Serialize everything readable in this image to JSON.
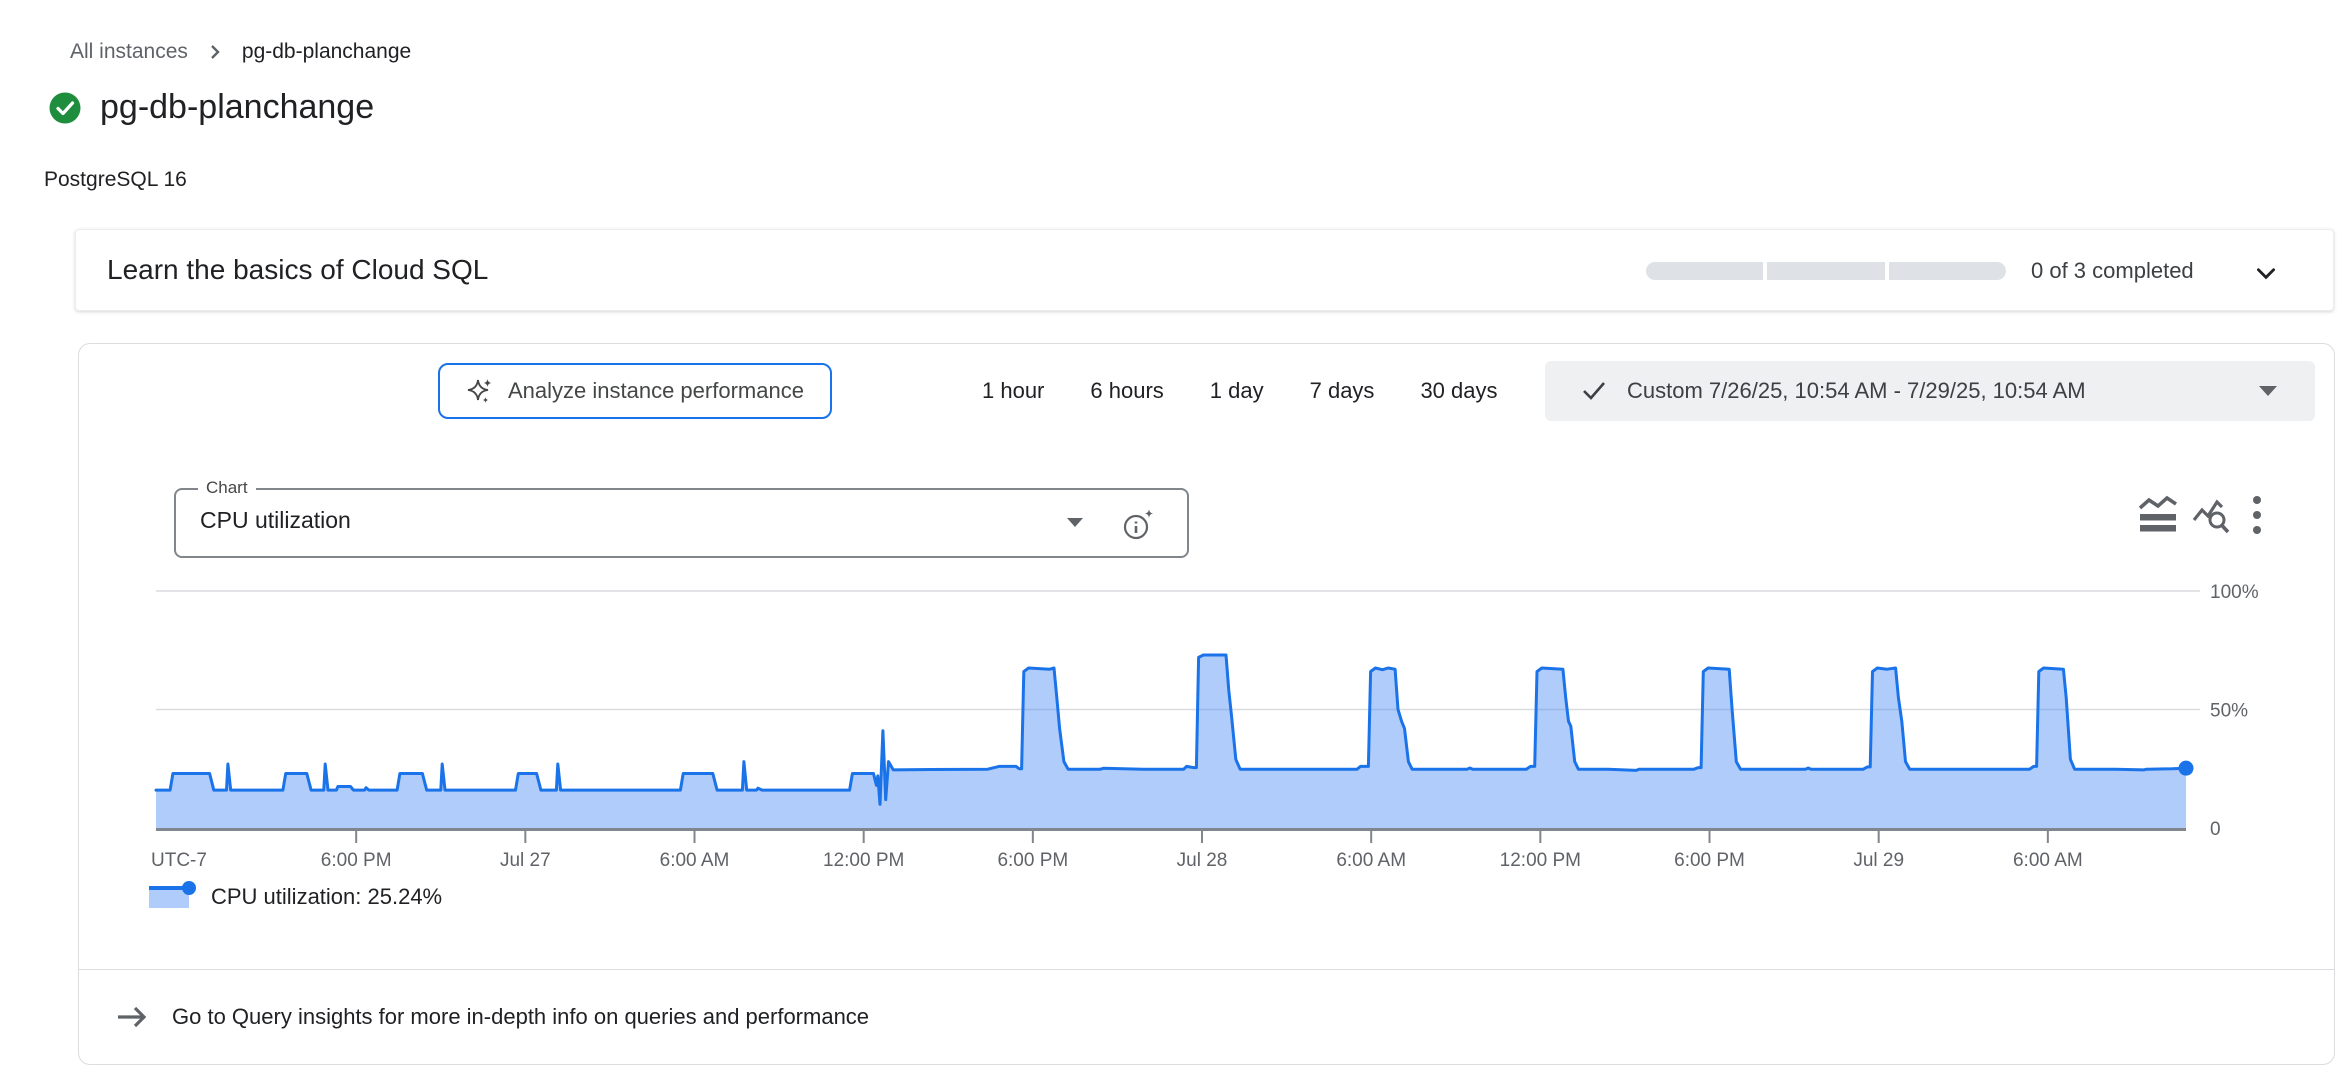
{
  "breadcrumb": {
    "parent": "All instances",
    "current": "pg-db-planchange"
  },
  "header": {
    "title": "pg-db-planchange",
    "subtitle": "PostgreSQL 16",
    "status": "healthy"
  },
  "learn_card": {
    "title": "Learn the basics of Cloud SQL",
    "progress_completed": 0,
    "progress_total": 3,
    "progress_label": "0 of 3 completed"
  },
  "toolbar": {
    "analyze_button": "Analyze instance performance",
    "ranges": [
      "1 hour",
      "6 hours",
      "1 day",
      "7 days",
      "30 days"
    ],
    "custom_range": "Custom 7/26/25, 10:54 AM - 7/29/25, 10:54 AM"
  },
  "chart_controls": {
    "field_label": "Chart",
    "selected": "CPU utilization"
  },
  "legend": {
    "label": "CPU utilization: 25.24%"
  },
  "footer": {
    "text": "Go to Query insights for more in-depth info on queries and performance"
  },
  "colors": {
    "accent": "#1a73e8",
    "series_line": "#1a73e8",
    "series_fill": "rgba(66,133,244,0.42)",
    "status_green": "#1e8e3e",
    "axis": "#80868b",
    "grid": "#dadce0"
  },
  "chart_data": {
    "type": "area",
    "title": "CPU utilization",
    "ylabel": "CPU utilization (%)",
    "ylim": [
      0,
      100
    ],
    "y_ticks": [
      {
        "v": 100,
        "label": "100%"
      },
      {
        "v": 50,
        "label": "50%"
      },
      {
        "v": 0,
        "label": "0"
      }
    ],
    "tz_label": "UTC-7",
    "x_unit": "hours since 7/26/25 10:54 AM",
    "x_range": [
      0,
      72
    ],
    "x_ticks": [
      {
        "t": 7.1,
        "label": "6:00 PM"
      },
      {
        "t": 13.1,
        "label": "Jul 27"
      },
      {
        "t": 19.1,
        "label": "6:00 AM"
      },
      {
        "t": 25.1,
        "label": "12:00 PM"
      },
      {
        "t": 31.1,
        "label": "6:00 PM"
      },
      {
        "t": 37.1,
        "label": "Jul 28"
      },
      {
        "t": 43.1,
        "label": "6:00 AM"
      },
      {
        "t": 49.1,
        "label": "12:00 PM"
      },
      {
        "t": 55.1,
        "label": "6:00 PM"
      },
      {
        "t": 61.1,
        "label": "Jul 29"
      },
      {
        "t": 67.1,
        "label": "6:00 AM"
      }
    ],
    "current_value_pct": 25.24,
    "grid": true,
    "legend_position": "bottom-left",
    "series": [
      {
        "name": "CPU utilization",
        "color": "#1a73e8",
        "fill": "rgba(66,133,244,0.42)",
        "points": [
          [
            0,
            16
          ],
          [
            0.5,
            16
          ],
          [
            0.6,
            23
          ],
          [
            1.9,
            23
          ],
          [
            2.05,
            16
          ],
          [
            2.5,
            16
          ],
          [
            2.55,
            27
          ],
          [
            2.65,
            16
          ],
          [
            4.5,
            16
          ],
          [
            4.6,
            23
          ],
          [
            5.35,
            23
          ],
          [
            5.5,
            16
          ],
          [
            5.95,
            16
          ],
          [
            6.0,
            27
          ],
          [
            6.1,
            16
          ],
          [
            6.4,
            16
          ],
          [
            6.45,
            17.5
          ],
          [
            6.9,
            17.5
          ],
          [
            7.0,
            16
          ],
          [
            7.4,
            16
          ],
          [
            7.45,
            17
          ],
          [
            7.55,
            16
          ],
          [
            8.55,
            16
          ],
          [
            8.65,
            23
          ],
          [
            9.45,
            23
          ],
          [
            9.6,
            16
          ],
          [
            10.1,
            16
          ],
          [
            10.15,
            27
          ],
          [
            10.25,
            16
          ],
          [
            12.75,
            16
          ],
          [
            12.85,
            23
          ],
          [
            13.5,
            23
          ],
          [
            13.65,
            16
          ],
          [
            14.2,
            16
          ],
          [
            14.25,
            27
          ],
          [
            14.35,
            16
          ],
          [
            18.6,
            16
          ],
          [
            18.7,
            23
          ],
          [
            19.75,
            23
          ],
          [
            19.9,
            16
          ],
          [
            20.8,
            16
          ],
          [
            20.85,
            28
          ],
          [
            20.95,
            16
          ],
          [
            21.3,
            16
          ],
          [
            21.35,
            16.8
          ],
          [
            21.5,
            16
          ],
          [
            24.6,
            16
          ],
          [
            24.7,
            23
          ],
          [
            25.45,
            23
          ],
          [
            25.55,
            18
          ],
          [
            25.6,
            22
          ],
          [
            25.68,
            10
          ],
          [
            25.78,
            41
          ],
          [
            25.88,
            12
          ],
          [
            25.98,
            28
          ],
          [
            26.15,
            24.5
          ],
          [
            27.5,
            24.7
          ],
          [
            29.5,
            24.8
          ],
          [
            29.9,
            26
          ],
          [
            30.5,
            26
          ],
          [
            30.62,
            25
          ],
          [
            30.7,
            25
          ],
          [
            30.78,
            66
          ],
          [
            30.95,
            67.5
          ],
          [
            31.7,
            67
          ],
          [
            31.85,
            67.5
          ],
          [
            31.95,
            55
          ],
          [
            32.05,
            42
          ],
          [
            32.2,
            28
          ],
          [
            32.35,
            24.8
          ],
          [
            33.5,
            24.8
          ],
          [
            33.6,
            25.2
          ],
          [
            35.0,
            24.8
          ],
          [
            36.45,
            24.8
          ],
          [
            36.55,
            26
          ],
          [
            36.8,
            25.5
          ],
          [
            36.9,
            25.5
          ],
          [
            36.98,
            72
          ],
          [
            37.15,
            73
          ],
          [
            37.95,
            73
          ],
          [
            38.05,
            58
          ],
          [
            38.15,
            47
          ],
          [
            38.3,
            29
          ],
          [
            38.45,
            24.8
          ],
          [
            39.5,
            24.8
          ],
          [
            41.0,
            24.8
          ],
          [
            42.6,
            24.8
          ],
          [
            42.72,
            26
          ],
          [
            42.95,
            26
          ],
          [
            43.0,
            26
          ],
          [
            43.08,
            66
          ],
          [
            43.25,
            67.5
          ],
          [
            43.5,
            66.8
          ],
          [
            43.7,
            67.5
          ],
          [
            43.95,
            67
          ],
          [
            44.05,
            50
          ],
          [
            44.18,
            45
          ],
          [
            44.28,
            42
          ],
          [
            44.42,
            28
          ],
          [
            44.55,
            24.8
          ],
          [
            45.5,
            24.8
          ],
          [
            46.5,
            24.8
          ],
          [
            46.6,
            25.3
          ],
          [
            46.7,
            24.8
          ],
          [
            48.6,
            24.8
          ],
          [
            48.75,
            26
          ],
          [
            48.9,
            26
          ],
          [
            48.98,
            66
          ],
          [
            49.15,
            67.5
          ],
          [
            49.9,
            67
          ],
          [
            50.0,
            55
          ],
          [
            50.1,
            45
          ],
          [
            50.18,
            43
          ],
          [
            50.32,
            28
          ],
          [
            50.45,
            24.8
          ],
          [
            51.5,
            24.8
          ],
          [
            52.5,
            24.3
          ],
          [
            52.6,
            24.8
          ],
          [
            54.55,
            24.8
          ],
          [
            54.7,
            25.5
          ],
          [
            54.8,
            25.5
          ],
          [
            54.88,
            66
          ],
          [
            55.05,
            67.5
          ],
          [
            55.8,
            67
          ],
          [
            55.9,
            50
          ],
          [
            56.05,
            28
          ],
          [
            56.2,
            24.8
          ],
          [
            57.5,
            24.8
          ],
          [
            58.5,
            24.8
          ],
          [
            58.6,
            25.3
          ],
          [
            58.7,
            24.8
          ],
          [
            60.55,
            24.8
          ],
          [
            60.7,
            25.8
          ],
          [
            60.8,
            25.8
          ],
          [
            60.88,
            66
          ],
          [
            61.05,
            67.5
          ],
          [
            61.4,
            67
          ],
          [
            61.7,
            67.5
          ],
          [
            61.8,
            55
          ],
          [
            61.92,
            45
          ],
          [
            62.05,
            28
          ],
          [
            62.2,
            24.8
          ],
          [
            63.5,
            24.8
          ],
          [
            64.5,
            24.8
          ],
          [
            66.45,
            24.8
          ],
          [
            66.6,
            26
          ],
          [
            66.7,
            26
          ],
          [
            66.78,
            66
          ],
          [
            66.95,
            67.5
          ],
          [
            67.65,
            67
          ],
          [
            67.75,
            55
          ],
          [
            67.9,
            29
          ],
          [
            68.05,
            24.8
          ],
          [
            69.5,
            24.8
          ],
          [
            70.5,
            24.5
          ],
          [
            70.6,
            24.8
          ],
          [
            71.5,
            25
          ],
          [
            72,
            25.24
          ]
        ]
      }
    ]
  }
}
